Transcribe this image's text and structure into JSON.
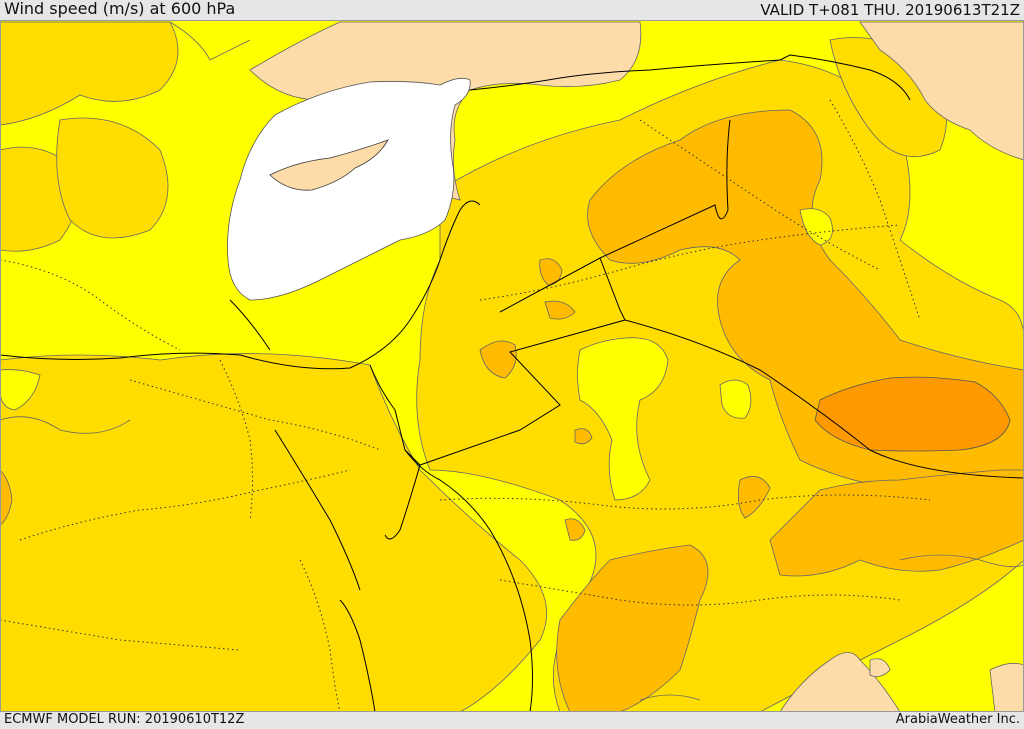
{
  "header": {
    "title": "Wind speed (m/s) at 600 hPa",
    "valid": "VALID T+081 THU. 20190613T21Z"
  },
  "footer": {
    "model_run": "ECMWF MODEL RUN: 20190610T12Z",
    "credit": "ArabiaWeather Inc."
  },
  "colors": {
    "calm": "#ffffff",
    "light": "#fddcaa",
    "bright": "#ffff00",
    "gold": "#ffdd00",
    "amber": "#ffbb00",
    "orange": "#ff9900",
    "border_line": "#000000",
    "contour_line": "#555555"
  }
}
